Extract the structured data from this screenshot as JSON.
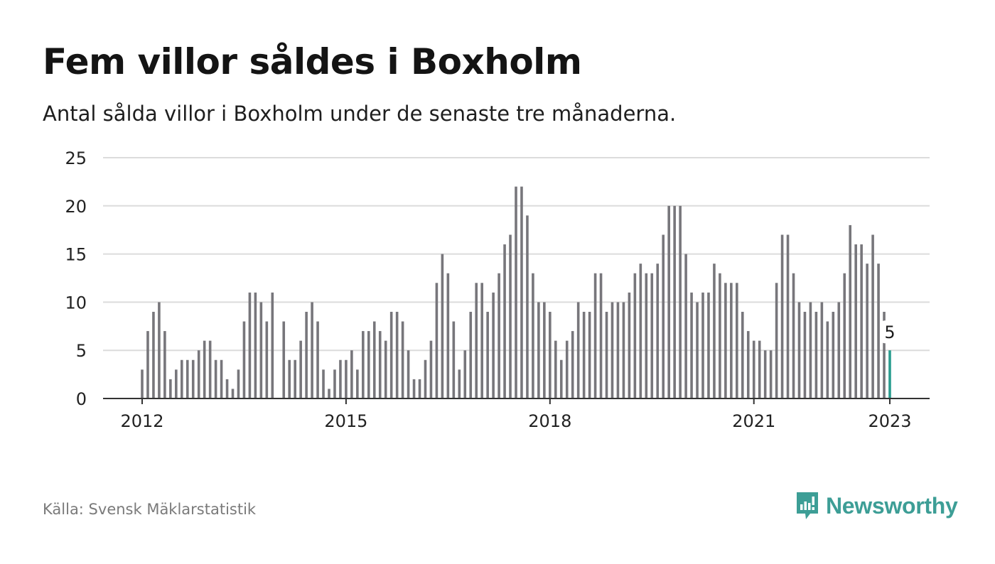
{
  "title": "Fem villor såldes i Boxholm",
  "subtitle": "Antal sålda villor i Boxholm under de senaste tre månaderna.",
  "source": "Källa: Svensk Mäklarstatistik",
  "brand": {
    "name": "Newsworthy",
    "icon": "newsworthy-logo-icon",
    "color": "#3d9e96"
  },
  "colors": {
    "bar": "#77767b",
    "highlight": "#2a9d8f",
    "grid": "#dcdcdc",
    "axis": "#333333"
  },
  "chart_data": {
    "type": "bar",
    "ylim": [
      0,
      25
    ],
    "yticks": [
      0,
      5,
      10,
      15,
      20,
      25
    ],
    "xticks": [
      "2012",
      "2015",
      "2018",
      "2021",
      "2023"
    ],
    "grid": true,
    "x_start": "2012-01",
    "x_end": "2023-01",
    "annotation": {
      "label": "5",
      "x": "2023-01"
    },
    "categories": [
      "2012-01",
      "2012-02",
      "2012-03",
      "2012-04",
      "2012-05",
      "2012-06",
      "2012-07",
      "2012-08",
      "2012-09",
      "2012-10",
      "2012-11",
      "2012-12",
      "2013-01",
      "2013-02",
      "2013-03",
      "2013-04",
      "2013-05",
      "2013-06",
      "2013-07",
      "2013-08",
      "2013-09",
      "2013-10",
      "2013-11",
      "2013-12",
      "2014-01",
      "2014-02",
      "2014-03",
      "2014-04",
      "2014-05",
      "2014-06",
      "2014-07",
      "2014-08",
      "2014-09",
      "2014-10",
      "2014-11",
      "2014-12",
      "2015-01",
      "2015-02",
      "2015-03",
      "2015-04",
      "2015-05",
      "2015-06",
      "2015-07",
      "2015-08",
      "2015-09",
      "2015-10",
      "2015-11",
      "2015-12",
      "2016-01",
      "2016-02",
      "2016-03",
      "2016-04",
      "2016-05",
      "2016-06",
      "2016-07",
      "2016-08",
      "2016-09",
      "2016-10",
      "2016-11",
      "2016-12",
      "2017-01",
      "2017-02",
      "2017-03",
      "2017-04",
      "2017-05",
      "2017-06",
      "2017-07",
      "2017-08",
      "2017-09",
      "2017-10",
      "2017-11",
      "2017-12",
      "2018-01",
      "2018-02",
      "2018-03",
      "2018-04",
      "2018-05",
      "2018-06",
      "2018-07",
      "2018-08",
      "2018-09",
      "2018-10",
      "2018-11",
      "2018-12",
      "2019-01",
      "2019-02",
      "2019-03",
      "2019-04",
      "2019-05",
      "2019-06",
      "2019-07",
      "2019-08",
      "2019-09",
      "2019-10",
      "2019-11",
      "2019-12",
      "2020-01",
      "2020-02",
      "2020-03",
      "2020-04",
      "2020-05",
      "2020-06",
      "2020-07",
      "2020-08",
      "2020-09",
      "2020-10",
      "2020-11",
      "2020-12",
      "2021-01",
      "2021-02",
      "2021-03",
      "2021-04",
      "2021-05",
      "2021-06",
      "2021-07",
      "2021-08",
      "2021-09",
      "2021-10",
      "2021-11",
      "2021-12",
      "2022-01",
      "2022-02",
      "2022-03",
      "2022-04",
      "2022-05",
      "2022-06",
      "2022-07",
      "2022-08",
      "2022-09",
      "2022-10",
      "2022-11",
      "2022-12",
      "2023-01"
    ],
    "values": [
      3,
      7,
      9,
      10,
      7,
      2,
      3,
      4,
      4,
      4,
      5,
      6,
      6,
      4,
      4,
      2,
      1,
      3,
      8,
      11,
      11,
      10,
      8,
      11,
      0,
      8,
      4,
      4,
      6,
      9,
      10,
      8,
      3,
      1,
      3,
      4,
      4,
      5,
      3,
      7,
      7,
      8,
      7,
      6,
      9,
      9,
      8,
      5,
      2,
      2,
      4,
      6,
      12,
      15,
      13,
      8,
      3,
      5,
      9,
      12,
      12,
      9,
      11,
      13,
      16,
      17,
      22,
      22,
      19,
      13,
      10,
      10,
      9,
      6,
      4,
      6,
      7,
      10,
      9,
      9,
      13,
      13,
      9,
      10,
      10,
      10,
      11,
      13,
      14,
      13,
      13,
      14,
      17,
      20,
      20,
      20,
      15,
      11,
      10,
      11,
      11,
      14,
      13,
      12,
      12,
      12,
      9,
      7,
      6,
      6,
      5,
      5,
      12,
      17,
      17,
      13,
      10,
      9,
      10,
      9,
      10,
      8,
      9,
      10,
      13,
      18,
      16,
      16,
      14,
      17,
      14,
      9,
      5
    ]
  }
}
